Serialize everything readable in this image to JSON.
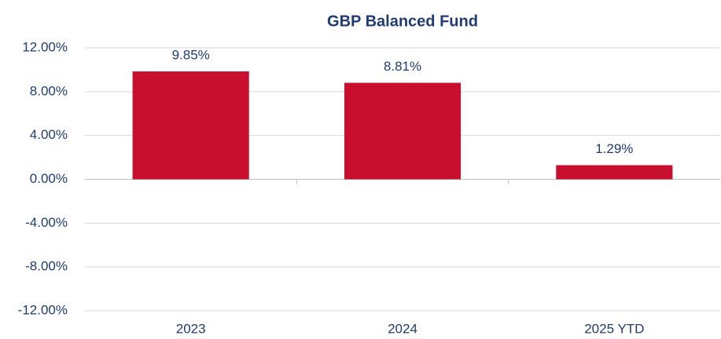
{
  "chart_data": {
    "type": "bar",
    "title": "GBP Balanced Fund",
    "categories": [
      "2023",
      "2024",
      "2025 YTD"
    ],
    "values": [
      9.85,
      8.81,
      1.29
    ],
    "value_labels": [
      "9.85%",
      "8.81%",
      "1.29%"
    ],
    "color": "#c8102e",
    "ylim": [
      -12,
      12
    ],
    "yticks": [
      {
        "value": -12,
        "label": "-12.00%"
      },
      {
        "value": -8,
        "label": "-8.00%"
      },
      {
        "value": -4,
        "label": "-4.00%"
      },
      {
        "value": 0,
        "label": "0.00%"
      },
      {
        "value": 4,
        "label": "4.00%"
      },
      {
        "value": 8,
        "label": "8.00%"
      },
      {
        "value": 12,
        "label": "12.00%"
      }
    ],
    "grid": true
  }
}
